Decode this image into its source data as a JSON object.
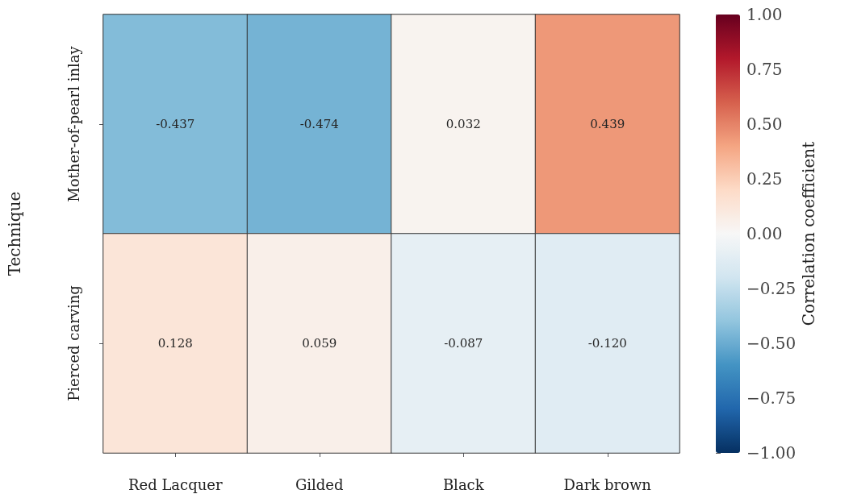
{
  "chart_data": {
    "type": "heatmap",
    "ylabel": "Technique",
    "clabel": "Correlation coefficient",
    "categories": [
      "Red Lacquer",
      "Gilded",
      "Black",
      "Dark brown"
    ],
    "y_categories": [
      "Mother-of-pearl inlay",
      "Pierced carving"
    ],
    "cells": [
      [
        -0.437,
        -0.474,
        0.032,
        0.439
      ],
      [
        0.128,
        0.059,
        -0.087,
        -0.12
      ]
    ],
    "cell_labels": [
      [
        "-0.437",
        "-0.474",
        "0.032",
        "0.439"
      ],
      [
        "0.128",
        "0.059",
        "-0.087",
        "-0.120"
      ]
    ],
    "clim": [
      -1,
      1
    ],
    "cticks": [
      {
        "value": -1,
        "label": "−1.00"
      },
      {
        "value": -0.75,
        "label": "−0.75"
      },
      {
        "value": -0.5,
        "label": "−0.50"
      },
      {
        "value": -0.25,
        "label": "−0.25"
      },
      {
        "value": 0,
        "label": "0.00"
      },
      {
        "value": 0.25,
        "label": "0.25"
      },
      {
        "value": 0.5,
        "label": "0.50"
      },
      {
        "value": 0.75,
        "label": "0.75"
      },
      {
        "value": 1,
        "label": "1.00"
      }
    ]
  }
}
